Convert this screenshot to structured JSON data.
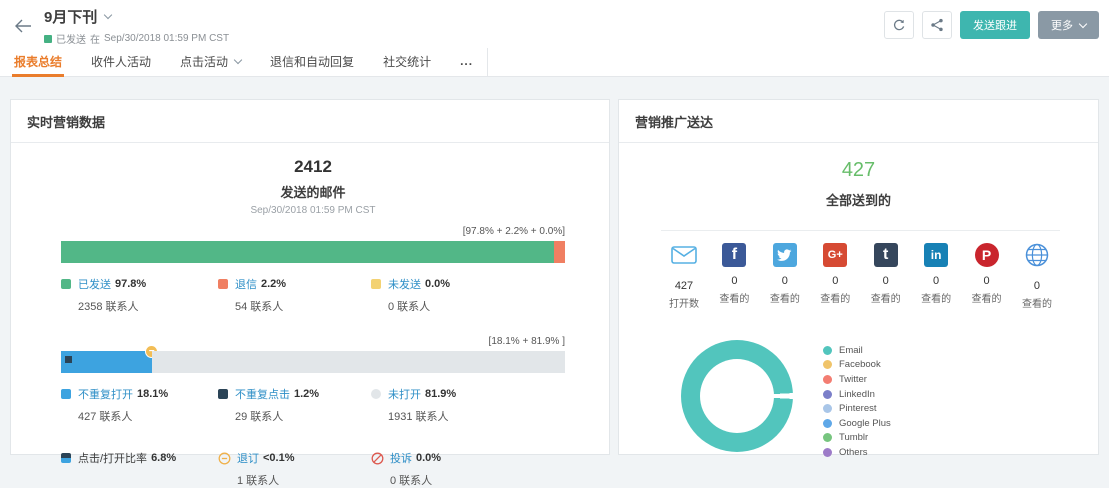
{
  "colors": {
    "accent_orange": "#ea7d2c",
    "teal_button": "#3eb6af",
    "more_button": "#8a99a5",
    "status_green": "#45b183",
    "delivered_green": "#67bd6a",
    "link_blue": "#2f8fc7"
  },
  "header": {
    "title": "9月下刊",
    "status": {
      "state_label": "已发送",
      "preposition": "在",
      "timestamp": "Sep/30/2018 01:59 PM CST",
      "color": "#45b183"
    },
    "actions": {
      "send_followup": "发送跟进",
      "more": "更多"
    }
  },
  "tabs": {
    "items": [
      {
        "label": "报表总结"
      },
      {
        "label": "收件人活动"
      },
      {
        "label": "点击活动"
      },
      {
        "label": "退信和自动回复"
      },
      {
        "label": "社交统计"
      },
      {
        "label": "..."
      }
    ]
  },
  "realtime_panel": {
    "title": "实时营销数据",
    "sent": {
      "count": "2412",
      "label": "发送的邮件",
      "timestamp": "Sep/30/2018 01:59 PM CST"
    },
    "delivery_bar": {
      "bracket_label": "[97.8% + 2.2% + 0.0%]",
      "segments": [
        {
          "name": "已发送",
          "pct": 97.8,
          "color": "#52b787"
        },
        {
          "name": "退信",
          "pct": 2.2,
          "color": "#f07f62"
        },
        {
          "name": "未发送",
          "pct": 0,
          "color": "#f3d273"
        }
      ]
    },
    "delivery_stats": [
      {
        "name": "已发送",
        "pct": "97.8%",
        "contacts": "2358 联系人",
        "color": "#52b787"
      },
      {
        "name": "退信",
        "pct": "2.2%",
        "contacts": "54 联系人",
        "color": "#f07f62"
      },
      {
        "name": "未发送",
        "pct": "0.0%",
        "contacts": "0 联系人",
        "color": "#f3d273"
      }
    ],
    "open_bar": {
      "bracket_label": "[18.1% + 81.9% ]",
      "segments": [
        {
          "name": "不重复打开",
          "pct": 18.1,
          "color": "#3da3e0"
        },
        {
          "name": "未打开",
          "pct": 81.9,
          "color": "#e2e6e9"
        }
      ]
    },
    "open_stats": [
      {
        "name": "不重复打开",
        "pct": "18.1%",
        "contacts": "427 联系人",
        "color": "#3da3e0"
      },
      {
        "name": "不重复点击",
        "pct": "1.2%",
        "contacts": "29 联系人",
        "color": "#2b4457"
      },
      {
        "name": "未打开",
        "pct": "81.9%",
        "contacts": "1931 联系人",
        "color": "#e2e6e9"
      }
    ],
    "extra_stats": [
      {
        "name": "点击/打开比率",
        "pct": "6.8%"
      },
      {
        "name": "退订",
        "pct": "<0.1%",
        "contacts": "1 联系人"
      },
      {
        "name": "投诉",
        "pct": "0.0%",
        "contacts": "0 联系人"
      }
    ]
  },
  "promotion_panel": {
    "title": "营销推广送达",
    "delivered": {
      "count": "427",
      "label": "全部送到的"
    },
    "channels": [
      {
        "name": "email",
        "count": "427",
        "label": "打开数"
      },
      {
        "name": "facebook",
        "glyph": "f",
        "count": "0",
        "label": "查看的",
        "color": "#3b5998"
      },
      {
        "name": "twitter",
        "count": "0",
        "label": "查看的",
        "color": "#4da7de"
      },
      {
        "name": "google-plus",
        "glyph": "G+",
        "count": "0",
        "label": "查看的",
        "color": "#d64a33"
      },
      {
        "name": "tumblr",
        "glyph": "t",
        "count": "0",
        "label": "查看的",
        "color": "#35465c"
      },
      {
        "name": "linkedin",
        "glyph": "in",
        "count": "0",
        "label": "查看的",
        "color": "#1781b5"
      },
      {
        "name": "pinterest",
        "glyph": "P",
        "count": "0",
        "label": "查看的",
        "color": "#c9252d"
      },
      {
        "name": "web",
        "count": "0",
        "label": "查看的"
      }
    ],
    "chart_data": {
      "type": "donut",
      "title": "营销推广送达",
      "categories": [
        "Email",
        "Facebook",
        "Twitter",
        "LinkedIn",
        "Pinterest",
        "Google Plus",
        "Tumblr",
        "Others"
      ],
      "values": [
        427,
        0,
        0,
        0,
        0,
        0,
        0,
        0
      ],
      "colors": [
        "#52c5bd",
        "#f0c46a",
        "#f37d72",
        "#7b7fc9",
        "#a9c6e8",
        "#5fa8e8",
        "#77c57f",
        "#9d7bc8"
      ],
      "legend_position": "right"
    },
    "legend": [
      {
        "label": "Email",
        "color": "#52c5bd"
      },
      {
        "label": "Facebook",
        "color": "#f0c46a"
      },
      {
        "label": "Twitter",
        "color": "#f37d72"
      },
      {
        "label": "LinkedIn",
        "color": "#7b7fc9"
      },
      {
        "label": "Pinterest",
        "color": "#a9c6e8"
      },
      {
        "label": "Google Plus",
        "color": "#5fa8e8"
      },
      {
        "label": "Tumblr",
        "color": "#77c57f"
      },
      {
        "label": "Others",
        "color": "#9d7bc8"
      }
    ]
  }
}
